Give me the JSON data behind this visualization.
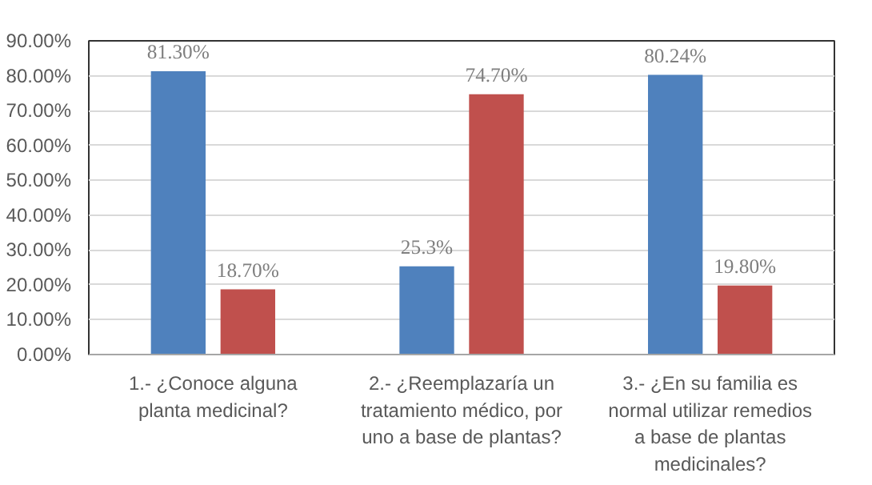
{
  "chart_data": {
    "type": "bar",
    "categories": [
      "1.- ¿Conoce alguna planta medicinal?",
      "2.- ¿Reemplazaría un tratamiento médico, por uno a base de plantas?",
      "3.- ¿En su familia es normal utilizar remedios a base de plantas medicinales?"
    ],
    "series": [
      {
        "color": "#4f81bd",
        "values": [
          81.3,
          25.3,
          80.24
        ],
        "value_labels": [
          "81.30%",
          "25.3%",
          "80.24%"
        ]
      },
      {
        "color": "#c0504d",
        "values": [
          18.7,
          74.7,
          19.8
        ],
        "value_labels": [
          "18.70%",
          "74.70%",
          "19.80%"
        ]
      }
    ],
    "ylim": [
      0,
      90
    ],
    "yticks": [
      {
        "value": 0,
        "label": "0.00%"
      },
      {
        "value": 10,
        "label": "10.00%"
      },
      {
        "value": 20,
        "label": "20.00%"
      },
      {
        "value": 30,
        "label": "30.00%"
      },
      {
        "value": 40,
        "label": "40.00%"
      },
      {
        "value": 50,
        "label": "50.00%"
      },
      {
        "value": 60,
        "label": "60.00%"
      },
      {
        "value": 70,
        "label": "70.00%"
      },
      {
        "value": 80,
        "label": "80.00%"
      },
      {
        "value": 90,
        "label": "90.00%"
      }
    ],
    "grid": "y"
  }
}
